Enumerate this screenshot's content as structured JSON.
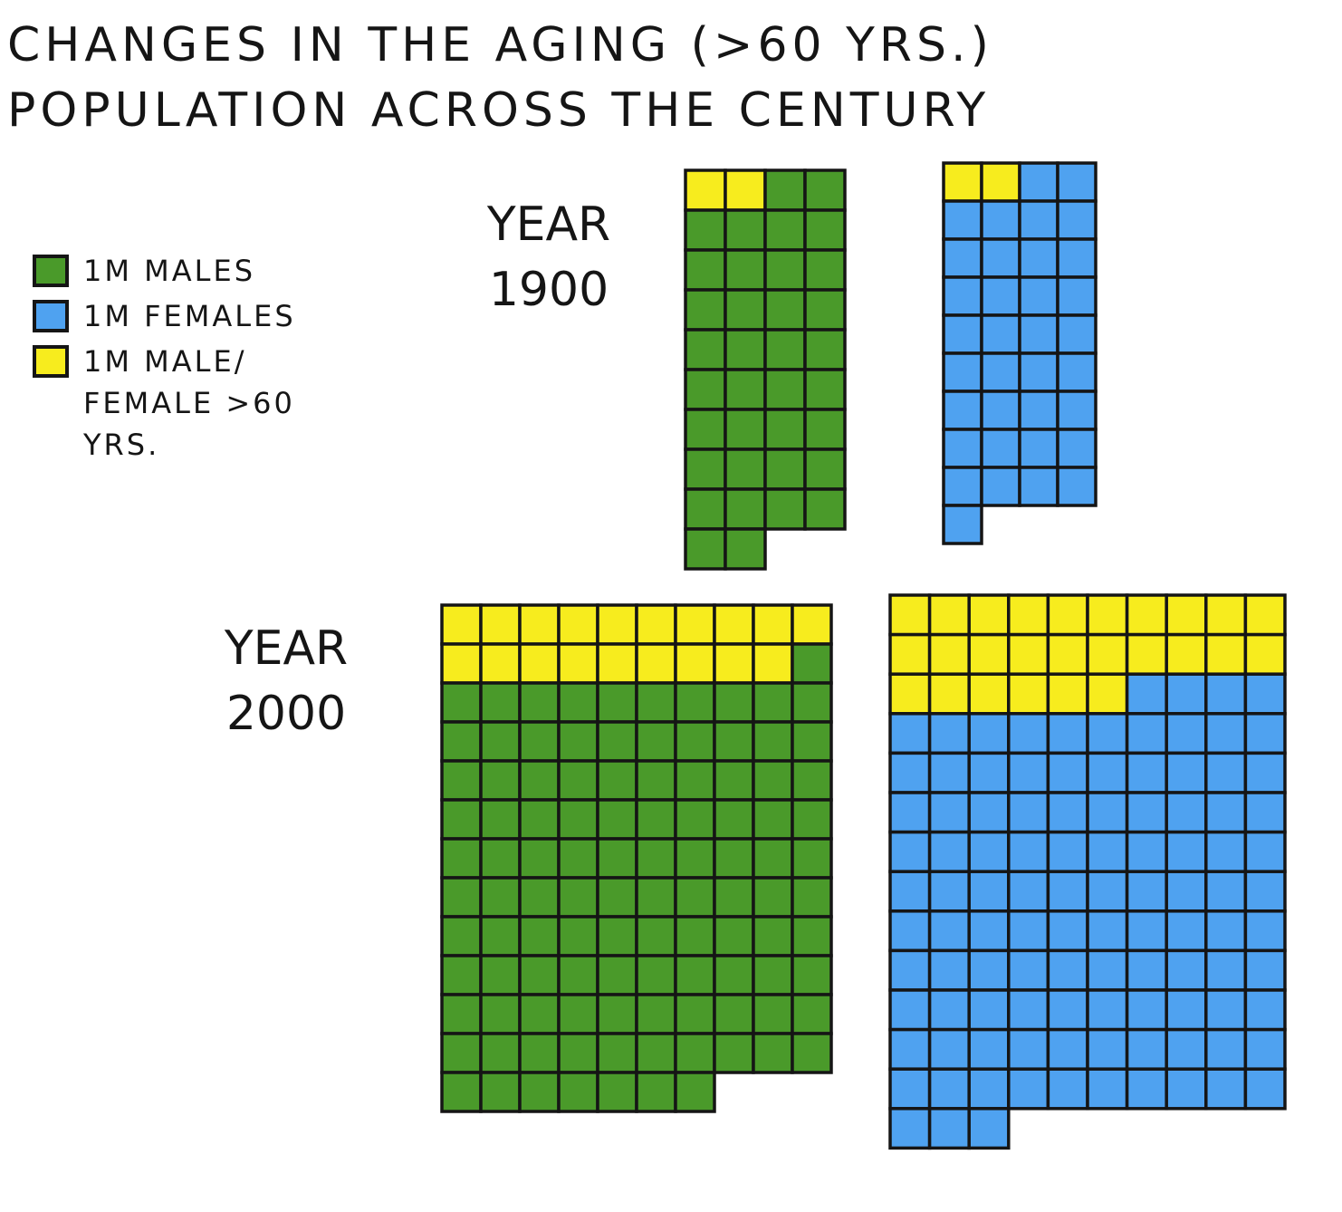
{
  "title_lines": [
    "CHANGES IN THE AGING (>60 YRS.)",
    "POPULATION ACROSS THE CENTURY"
  ],
  "legend": {
    "males": "1M MALES",
    "females": "1M FEMALES",
    "aging": "1M MALE/ FEMALE >60 YRS."
  },
  "colors": {
    "males": "#4a9a2a",
    "females": "#4fa2f0",
    "aging": "#f7ec1e",
    "grid": "#151515"
  },
  "chart_data": {
    "type": "table",
    "title": "CHANGES IN THE AGING (>60 YRS.) POPULATION ACROSS THE CENTURY",
    "unit_per_square_millions": 1,
    "columns_per_block": {
      "1900": 4,
      "2000": 10
    },
    "blocks": [
      {
        "year": "YEAR 1900",
        "sex": "males",
        "over_60": 2,
        "total": 38
      },
      {
        "year": "YEAR 1900",
        "sex": "females",
        "over_60": 2,
        "total": 37
      },
      {
        "year": "YEAR 2000",
        "sex": "males",
        "over_60": 19,
        "total": 127
      },
      {
        "year": "YEAR 2000",
        "sex": "females",
        "over_60": 26,
        "total": 133
      }
    ]
  }
}
